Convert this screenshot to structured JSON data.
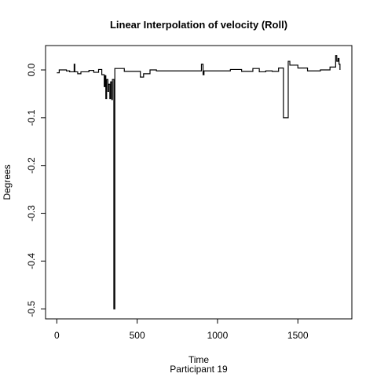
{
  "chart_data": {
    "type": "line",
    "title": "Linear Interpolation of velocity (Roll)",
    "x_label": "Time",
    "subtitle": "Participant  19",
    "y_label": "Degrees",
    "x": [
      0,
      15,
      15,
      60,
      60,
      80,
      80,
      108,
      108,
      112,
      112,
      130,
      130,
      150,
      150,
      200,
      200,
      230,
      230,
      260,
      260,
      280,
      280,
      295,
      295,
      300,
      300,
      305,
      305,
      310,
      310,
      318,
      318,
      322,
      322,
      330,
      330,
      335,
      335,
      342,
      342,
      346,
      346,
      355,
      355,
      361,
      361,
      420,
      420,
      520,
      520,
      540,
      540,
      580,
      580,
      620,
      620,
      900,
      900,
      910,
      910,
      916,
      916,
      1080,
      1080,
      1150,
      1150,
      1220,
      1220,
      1260,
      1260,
      1300,
      1300,
      1340,
      1340,
      1380,
      1380,
      1410,
      1410,
      1440,
      1440,
      1450,
      1450,
      1500,
      1500,
      1560,
      1560,
      1640,
      1640,
      1700,
      1700,
      1735,
      1735,
      1742,
      1742,
      1750,
      1750,
      1756,
      1756,
      1762,
      1762
    ],
    "series": [
      {
        "name": "Roll",
        "color": "#000000",
        "values": [
          -0.006,
          -0.006,
          0.0,
          0.0,
          -0.002,
          -0.002,
          -0.004,
          -0.004,
          0.012,
          0.012,
          -0.004,
          -0.004,
          -0.008,
          -0.008,
          -0.004,
          -0.004,
          -0.001,
          -0.001,
          -0.005,
          -0.005,
          0.001,
          0.001,
          -0.01,
          -0.01,
          -0.035,
          -0.035,
          -0.012,
          -0.012,
          -0.06,
          -0.06,
          -0.02,
          -0.02,
          -0.045,
          -0.045,
          -0.03,
          -0.03,
          -0.06,
          -0.06,
          -0.025,
          -0.025,
          -0.062,
          -0.062,
          -0.02,
          -0.02,
          -0.5,
          -0.5,
          0.003,
          0.003,
          -0.003,
          -0.003,
          -0.015,
          -0.015,
          -0.008,
          -0.008,
          0.0,
          0.0,
          -0.002,
          -0.002,
          0.012,
          0.012,
          -0.01,
          -0.01,
          -0.002,
          -0.002,
          0.001,
          0.001,
          -0.003,
          -0.003,
          0.003,
          0.003,
          -0.004,
          -0.004,
          -0.002,
          -0.002,
          -0.003,
          -0.003,
          0.004,
          0.004,
          -0.1,
          -0.1,
          0.018,
          0.018,
          0.01,
          0.01,
          0.004,
          0.004,
          -0.002,
          -0.002,
          0.0,
          0.0,
          0.006,
          0.006,
          0.03,
          0.03,
          0.018,
          0.018,
          0.024,
          0.024,
          0.012,
          0.012,
          0.0
        ]
      }
    ],
    "xlim": [
      -70,
      1836
    ],
    "xticks": [
      0,
      500,
      1000,
      1500
    ],
    "ylim": [
      -0.521,
      0.051
    ],
    "yticks": [
      {
        "value": 0,
        "label": "0.0"
      },
      -0.1,
      -0.2,
      -0.3,
      -0.4,
      -0.5
    ]
  }
}
